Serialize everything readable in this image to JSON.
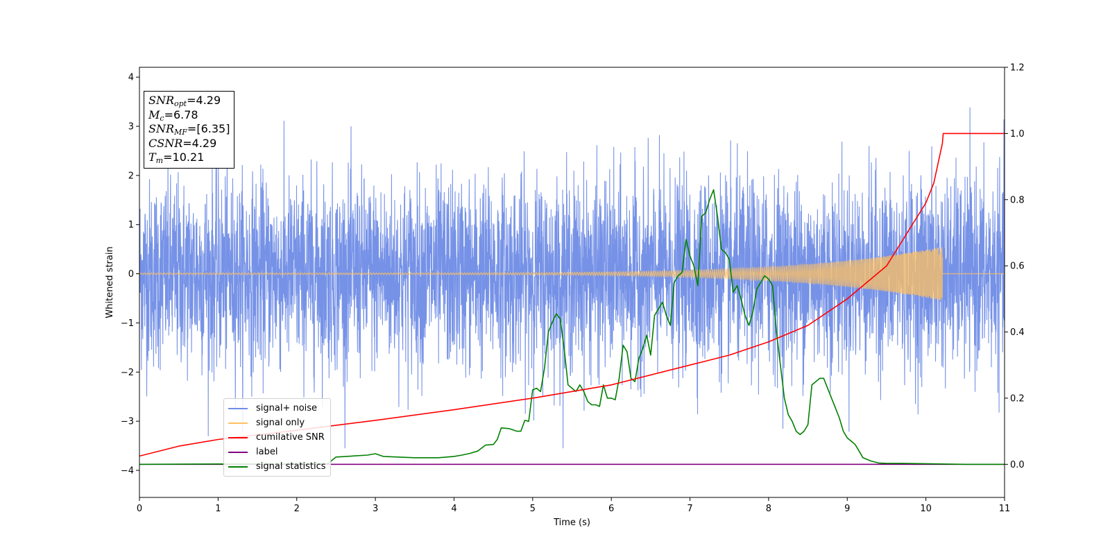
{
  "chart_data": {
    "type": "line",
    "xlabel": "Time (s)",
    "ylabel": "Whitened strain",
    "xlim": [
      0,
      11
    ],
    "ylim": [
      -4.55,
      4.2
    ],
    "ylim_right": [
      -0.1,
      1.2
    ],
    "x_ticks": [
      "0",
      "1",
      "2",
      "3",
      "4",
      "5",
      "6",
      "7",
      "8",
      "9",
      "10",
      "11"
    ],
    "y_ticks": [
      "−4",
      "−3",
      "−2",
      "−1",
      "0",
      "1",
      "2",
      "3",
      "4"
    ],
    "y_ticks_right": [
      "0.0",
      "0.2",
      "0.4",
      "0.6",
      "0.8",
      "1.0",
      "1.2"
    ],
    "legend_position": "lower-left",
    "info": {
      "snr_opt": "4.29",
      "mc": "6.78",
      "snr_mf": "[6.35]",
      "csnr": "4.29",
      "tm": "10.21"
    },
    "series": [
      {
        "name": "signal+ noise",
        "axis": "left",
        "color": "#6f8ce6",
        "description_values": {
          "std": 0.95,
          "max": 3.8,
          "min": -3.55
        }
      },
      {
        "name": "signal only",
        "axis": "left",
        "color": "#ffc061",
        "chirp": {
          "start": 0,
          "end": 10.21,
          "amp_start": 0.015,
          "amp_end": 0.55
        }
      },
      {
        "name": "cumilative SNR",
        "axis": "right",
        "color": "#ff0000",
        "x": [
          0,
          0.5,
          1,
          2,
          3,
          4,
          5,
          6,
          7,
          7.5,
          8,
          8.5,
          9,
          9.5,
          10,
          10.1,
          10.21,
          10.22,
          11
        ],
        "y": [
          0.025,
          0.055,
          0.075,
          0.103,
          0.133,
          0.165,
          0.2,
          0.24,
          0.3,
          0.33,
          0.37,
          0.42,
          0.5,
          0.6,
          0.79,
          0.85,
          0.97,
          1.0,
          1.0
        ]
      },
      {
        "name": "label",
        "axis": "right",
        "color": "#800080",
        "x": [
          0,
          11
        ],
        "y": [
          0,
          0
        ]
      },
      {
        "name": "signal statistics",
        "axis": "right",
        "color": "#008000",
        "x": [
          0,
          1,
          2,
          2.4,
          2.5,
          2.7,
          2.9,
          3.0,
          3.1,
          3.5,
          3.8,
          4.0,
          4.1,
          4.2,
          4.3,
          4.4,
          4.5,
          4.55,
          4.6,
          4.7,
          4.8,
          4.85,
          4.9,
          4.95,
          5.0,
          5.05,
          5.1,
          5.15,
          5.2,
          5.25,
          5.3,
          5.35,
          5.4,
          5.45,
          5.5,
          5.55,
          5.6,
          5.65,
          5.7,
          5.75,
          5.8,
          5.85,
          5.9,
          5.95,
          6.0,
          6.05,
          6.1,
          6.15,
          6.2,
          6.25,
          6.3,
          6.35,
          6.4,
          6.45,
          6.5,
          6.55,
          6.6,
          6.65,
          6.7,
          6.75,
          6.8,
          6.85,
          6.9,
          6.95,
          7.0,
          7.05,
          7.1,
          7.15,
          7.2,
          7.25,
          7.3,
          7.35,
          7.4,
          7.45,
          7.5,
          7.55,
          7.6,
          7.65,
          7.7,
          7.75,
          7.8,
          7.85,
          7.9,
          7.95,
          8.0,
          8.05,
          8.1,
          8.15,
          8.2,
          8.25,
          8.3,
          8.35,
          8.4,
          8.45,
          8.5,
          8.55,
          8.6,
          8.65,
          8.7,
          8.75,
          8.8,
          8.85,
          8.9,
          8.95,
          9.0,
          9.05,
          9.1,
          9.15,
          9.2,
          9.3,
          9.4,
          9.5,
          9.7,
          10.0,
          10.5,
          11
        ],
        "y": [
          0,
          0.001,
          0.001,
          0.003,
          0.022,
          0.025,
          0.028,
          0.032,
          0.024,
          0.02,
          0.02,
          0.024,
          0.028,
          0.033,
          0.04,
          0.058,
          0.06,
          0.075,
          0.11,
          0.108,
          0.1,
          0.1,
          0.133,
          0.13,
          0.225,
          0.23,
          0.22,
          0.29,
          0.4,
          0.43,
          0.455,
          0.44,
          0.35,
          0.24,
          0.23,
          0.22,
          0.24,
          0.22,
          0.19,
          0.18,
          0.18,
          0.175,
          0.24,
          0.2,
          0.2,
          0.195,
          0.26,
          0.36,
          0.34,
          0.26,
          0.25,
          0.32,
          0.35,
          0.39,
          0.33,
          0.45,
          0.47,
          0.49,
          0.45,
          0.42,
          0.55,
          0.57,
          0.58,
          0.68,
          0.63,
          0.6,
          0.54,
          0.75,
          0.76,
          0.8,
          0.83,
          0.75,
          0.65,
          0.64,
          0.62,
          0.52,
          0.54,
          0.5,
          0.45,
          0.42,
          0.46,
          0.53,
          0.55,
          0.57,
          0.56,
          0.54,
          0.4,
          0.3,
          0.2,
          0.15,
          0.13,
          0.1,
          0.09,
          0.1,
          0.12,
          0.24,
          0.25,
          0.26,
          0.26,
          0.23,
          0.2,
          0.17,
          0.14,
          0.1,
          0.08,
          0.07,
          0.06,
          0.04,
          0.02,
          0.01,
          0.004,
          0.003,
          0.003,
          0.002,
          0,
          0
        ]
      }
    ]
  }
}
